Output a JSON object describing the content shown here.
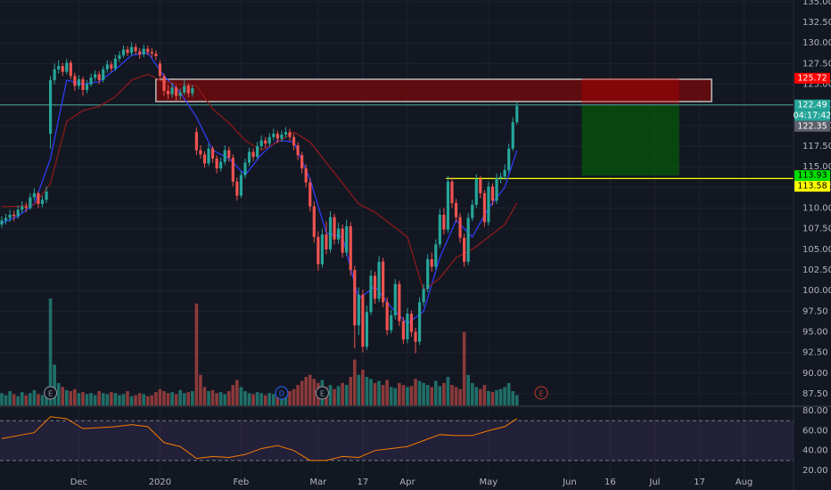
{
  "chart_data": {
    "type": "candlestick",
    "grid": true,
    "up_color": "#26a69a",
    "down_color": "#ef5350",
    "xlim": [
      -0.44,
      195.2
    ],
    "xticks": [
      {
        "value": 19,
        "label": "Dec"
      },
      {
        "value": 39,
        "label": "2020"
      },
      {
        "value": 59,
        "label": "Feb"
      },
      {
        "value": 78,
        "label": "Mar"
      },
      {
        "value": 89,
        "label": "17"
      },
      {
        "value": 100,
        "label": "Apr"
      },
      {
        "value": 120,
        "label": "May"
      },
      {
        "value": 140,
        "label": "Jun"
      },
      {
        "value": 150,
        "label": "16"
      },
      {
        "value": 161,
        "label": "Jul"
      },
      {
        "value": 172,
        "label": "17"
      },
      {
        "value": 183,
        "label": "Aug"
      }
    ],
    "ylim": [
      86.1,
      135.2
    ],
    "yticks": [
      {
        "value": 87.5,
        "label": "87.50"
      },
      {
        "value": 90,
        "label": "90.00"
      },
      {
        "value": 92.5,
        "label": "92.50"
      },
      {
        "value": 95,
        "label": "95.00"
      },
      {
        "value": 97.5,
        "label": "97.50"
      },
      {
        "value": 100,
        "label": "100.00"
      },
      {
        "value": 102.5,
        "label": "102.50"
      },
      {
        "value": 105,
        "label": "105.00"
      },
      {
        "value": 107.5,
        "label": "107.50"
      },
      {
        "value": 110,
        "label": "110.00"
      },
      {
        "value": 112.5,
        "label": "112.50"
      },
      {
        "value": 115,
        "label": "115.00"
      },
      {
        "value": 117.5,
        "label": "117.50"
      },
      {
        "value": 120,
        "label": "120.00"
      },
      {
        "value": 122.5,
        "label": "122.50"
      },
      {
        "value": 125,
        "label": "125.00"
      },
      {
        "value": 127.5,
        "label": "127.50"
      },
      {
        "value": 130,
        "label": "130.00"
      },
      {
        "value": 132.5,
        "label": "132.50"
      },
      {
        "value": 135,
        "label": "135.00"
      }
    ],
    "candles": [
      [
        108.0,
        109.0,
        107.6,
        108.5
      ],
      [
        108.5,
        109.3,
        108.0,
        108.8
      ],
      [
        108.8,
        109.8,
        108.3,
        109.2
      ],
      [
        109.2,
        109.7,
        108.4,
        109.0
      ],
      [
        109.0,
        110.3,
        108.7,
        109.8
      ],
      [
        109.8,
        110.8,
        109.4,
        110.2
      ],
      [
        110.2,
        110.7,
        109.5,
        110.0
      ],
      [
        110.0,
        111.8,
        109.8,
        111.3
      ],
      [
        111.3,
        112.4,
        110.9,
        111.8
      ],
      [
        111.8,
        112.0,
        110.0,
        110.5
      ],
      [
        110.5,
        111.5,
        110.1,
        111.0
      ],
      [
        111.0,
        112.6,
        110.6,
        112.0
      ],
      [
        119.0,
        126.0,
        117.2,
        125.5
      ],
      [
        125.5,
        127.5,
        125.0,
        126.8
      ],
      [
        126.8,
        127.9,
        126.3,
        127.2
      ],
      [
        127.2,
        127.6,
        126.0,
        126.5
      ],
      [
        126.5,
        128.1,
        126.2,
        127.6
      ],
      [
        127.6,
        127.9,
        125.6,
        126.0
      ],
      [
        126.0,
        126.4,
        124.2,
        124.8
      ],
      [
        124.8,
        126.1,
        124.4,
        125.6
      ],
      [
        125.6,
        125.9,
        123.6,
        124.3
      ],
      [
        124.3,
        125.5,
        123.9,
        125.0
      ],
      [
        125.0,
        126.3,
        124.7,
        125.8
      ],
      [
        125.8,
        126.7,
        125.4,
        126.2
      ],
      [
        126.2,
        126.6,
        125.0,
        125.5
      ],
      [
        125.5,
        127.2,
        125.2,
        126.8
      ],
      [
        126.8,
        127.9,
        126.4,
        127.4
      ],
      [
        127.4,
        127.8,
        126.5,
        126.9
      ],
      [
        126.9,
        128.6,
        126.6,
        128.1
      ],
      [
        128.1,
        129.0,
        127.7,
        128.5
      ],
      [
        128.5,
        129.7,
        128.2,
        129.2
      ],
      [
        129.2,
        129.6,
        128.4,
        128.8
      ],
      [
        128.8,
        130.1,
        128.5,
        129.5
      ],
      [
        129.5,
        129.9,
        128.6,
        129.0
      ],
      [
        129.0,
        129.4,
        128.1,
        128.6
      ],
      [
        128.6,
        129.8,
        128.3,
        129.3
      ],
      [
        129.3,
        129.7,
        128.5,
        128.9
      ],
      [
        128.9,
        129.4,
        128.2,
        128.7
      ],
      [
        128.7,
        129.1,
        127.9,
        128.4
      ],
      [
        127.5,
        127.9,
        125.4,
        126.0
      ],
      [
        126.0,
        126.3,
        123.6,
        124.2
      ],
      [
        124.2,
        124.9,
        123.2,
        123.8
      ],
      [
        123.8,
        125.2,
        123.4,
        124.6
      ],
      [
        124.6,
        124.9,
        123.0,
        123.6
      ],
      [
        123.6,
        124.5,
        123.1,
        124.0
      ],
      [
        124.0,
        125.6,
        123.7,
        124.8
      ],
      [
        124.8,
        125.1,
        123.4,
        123.9
      ],
      [
        123.9,
        124.9,
        123.5,
        124.5
      ],
      [
        119.2,
        119.8,
        116.4,
        117.0
      ],
      [
        117.0,
        117.6,
        116.0,
        116.5
      ],
      [
        116.5,
        116.9,
        114.9,
        115.4
      ],
      [
        115.4,
        117.8,
        115.1,
        117.2
      ],
      [
        117.2,
        117.5,
        115.5,
        116.0
      ],
      [
        116.0,
        116.4,
        114.2,
        114.8
      ],
      [
        114.8,
        116.1,
        114.4,
        115.6
      ],
      [
        115.6,
        117.6,
        115.2,
        117.0
      ],
      [
        117.0,
        117.4,
        115.6,
        116.1
      ],
      [
        116.1,
        116.5,
        112.6,
        113.2
      ],
      [
        113.2,
        113.7,
        110.9,
        111.5
      ],
      [
        111.5,
        114.5,
        111.2,
        114.0
      ],
      [
        114.0,
        116.0,
        113.6,
        115.5
      ],
      [
        115.5,
        117.3,
        115.1,
        116.8
      ],
      [
        116.8,
        117.2,
        115.7,
        116.2
      ],
      [
        116.2,
        118.0,
        115.9,
        117.5
      ],
      [
        117.5,
        118.8,
        117.1,
        118.2
      ],
      [
        118.2,
        118.6,
        117.3,
        117.8
      ],
      [
        117.8,
        119.1,
        117.5,
        118.6
      ],
      [
        118.6,
        119.6,
        118.2,
        119.0
      ],
      [
        119.0,
        119.4,
        117.9,
        118.4
      ],
      [
        118.4,
        119.4,
        118.0,
        118.9
      ],
      [
        118.9,
        119.8,
        118.5,
        119.2
      ],
      [
        119.2,
        119.6,
        118.1,
        118.6
      ],
      [
        118.6,
        119.0,
        117.0,
        117.6
      ],
      [
        117.6,
        118.0,
        115.8,
        116.4
      ],
      [
        116.4,
        116.8,
        114.2,
        114.8
      ],
      [
        114.8,
        115.3,
        112.5,
        113.1
      ],
      [
        113.1,
        113.6,
        109.6,
        110.2
      ],
      [
        110.2,
        110.8,
        105.8,
        106.5
      ],
      [
        106.5,
        107.2,
        102.4,
        103.2
      ],
      [
        103.2,
        107.5,
        102.8,
        106.8
      ],
      [
        106.8,
        108.4,
        104.4,
        105.0
      ],
      [
        105.0,
        109.6,
        104.6,
        108.9
      ],
      [
        108.9,
        109.3,
        105.6,
        106.2
      ],
      [
        106.2,
        108.2,
        105.7,
        107.5
      ],
      [
        107.5,
        108.0,
        104.0,
        104.6
      ],
      [
        104.6,
        108.6,
        104.2,
        107.8
      ],
      [
        107.8,
        108.3,
        101.8,
        102.5
      ],
      [
        102.5,
        103.0,
        93.0,
        95.8
      ],
      [
        95.8,
        100.4,
        94.6,
        99.5
      ],
      [
        99.5,
        100.1,
        92.5,
        93.2
      ],
      [
        93.2,
        98.2,
        92.8,
        97.4
      ],
      [
        97.4,
        102.5,
        97.0,
        101.8
      ],
      [
        101.8,
        102.3,
        98.4,
        99.0
      ],
      [
        99.0,
        104.2,
        98.6,
        103.5
      ],
      [
        103.5,
        104.0,
        98.0,
        98.6
      ],
      [
        98.6,
        99.2,
        94.6,
        95.2
      ],
      [
        95.2,
        97.7,
        94.8,
        97.0
      ],
      [
        97.0,
        101.4,
        96.5,
        100.8
      ],
      [
        100.8,
        101.2,
        95.7,
        96.3
      ],
      [
        96.3,
        96.8,
        93.5,
        94.1
      ],
      [
        94.1,
        97.9,
        93.6,
        97.2
      ],
      [
        97.2,
        97.6,
        94.4,
        95.0
      ],
      [
        95.0,
        95.5,
        92.4,
        93.8
      ],
      [
        93.8,
        99.2,
        93.4,
        98.6
      ],
      [
        98.6,
        100.8,
        98.1,
        100.2
      ],
      [
        100.2,
        104.4,
        99.8,
        103.8
      ],
      [
        103.8,
        104.6,
        102.3,
        102.9
      ],
      [
        102.9,
        106.2,
        102.5,
        105.6
      ],
      [
        105.6,
        109.9,
        105.2,
        109.2
      ],
      [
        109.2,
        110.0,
        106.8,
        107.4
      ],
      [
        107.4,
        113.9,
        107.0,
        113.2
      ],
      [
        113.2,
        113.7,
        110.0,
        110.6
      ],
      [
        110.6,
        111.1,
        108.3,
        108.9
      ],
      [
        108.9,
        109.4,
        105.8,
        106.4
      ],
      [
        106.4,
        106.9,
        102.9,
        103.5
      ],
      [
        103.5,
        109.4,
        103.1,
        108.8
      ],
      [
        108.8,
        111.0,
        108.4,
        110.4
      ],
      [
        110.4,
        114.1,
        110.0,
        113.5
      ],
      [
        113.5,
        113.9,
        111.2,
        111.8
      ],
      [
        111.8,
        112.2,
        107.7,
        108.3
      ],
      [
        108.3,
        113.2,
        107.9,
        112.6
      ],
      [
        112.6,
        113.0,
        110.3,
        110.9
      ],
      [
        110.9,
        114.2,
        110.5,
        113.6
      ],
      [
        113.6,
        114.3,
        113.0,
        113.8
      ],
      [
        113.8,
        115.3,
        113.4,
        114.6
      ],
      [
        114.6,
        117.8,
        114.2,
        117.2
      ],
      [
        117.2,
        121.0,
        116.9,
        120.4
      ],
      [
        120.4,
        122.8,
        120.1,
        122.35
      ]
    ],
    "volume": {
      "up_color": "#1f6f68",
      "down_color": "#8a3a3a",
      "values": [
        12,
        10,
        14,
        11,
        9,
        13,
        10,
        12,
        15,
        11,
        10,
        13,
        105,
        40,
        22,
        18,
        15,
        14,
        16,
        12,
        13,
        11,
        12,
        10,
        14,
        12,
        11,
        13,
        12,
        10,
        11,
        14,
        9,
        10,
        12,
        11,
        9,
        10,
        13,
        16,
        14,
        12,
        13,
        11,
        15,
        12,
        13,
        14,
        100,
        30,
        18,
        14,
        15,
        12,
        13,
        11,
        14,
        20,
        25,
        18,
        14,
        12,
        11,
        13,
        12,
        10,
        12,
        11,
        13,
        12,
        11,
        14,
        16,
        20,
        24,
        28,
        30,
        26,
        22,
        25,
        18,
        20,
        16,
        19,
        22,
        20,
        28,
        45,
        30,
        35,
        28,
        26,
        22,
        24,
        20,
        25,
        18,
        17,
        22,
        20,
        18,
        19,
        26,
        24,
        22,
        20,
        18,
        24,
        19,
        22,
        28,
        20,
        18,
        16,
        72,
        30,
        22,
        18,
        16,
        20,
        14,
        13,
        15,
        16,
        18,
        22,
        14,
        10
      ]
    },
    "lines": [
      {
        "color": "#2f3cf5",
        "x": [
          0,
          4,
          8,
          12,
          16,
          20,
          24,
          28,
          32,
          36,
          40,
          44,
          48,
          52,
          56,
          60,
          64,
          68,
          72,
          76,
          80,
          84,
          88,
          92,
          96,
          100,
          104,
          108,
          112,
          116,
          120,
          124,
          127
        ],
        "values": [
          108.2,
          109.0,
          110.5,
          116.0,
          125.5,
          125.0,
          125.3,
          126.8,
          128.5,
          128.8,
          126.0,
          124.0,
          121.0,
          117.0,
          116.0,
          114.0,
          116.5,
          118.2,
          118.0,
          113.5,
          107.0,
          106.5,
          99.0,
          100.5,
          98.0,
          96.0,
          97.5,
          104.0,
          108.5,
          106.5,
          110.0,
          112.5,
          117.0
        ]
      },
      {
        "color": "#8b1a1a",
        "x": [
          0,
          4,
          8,
          12,
          16,
          20,
          24,
          28,
          32,
          36,
          40,
          44,
          48,
          52,
          56,
          60,
          64,
          68,
          72,
          76,
          80,
          84,
          88,
          92,
          96,
          100,
          104,
          108,
          112,
          116,
          120,
          124,
          127
        ],
        "values": [
          110.2,
          110.2,
          110.4,
          113.0,
          120.5,
          121.8,
          122.3,
          123.5,
          125.5,
          126.2,
          125.3,
          125.0,
          124.8,
          122.0,
          120.3,
          118.2,
          117.0,
          118.0,
          119.2,
          118.0,
          115.5,
          113.0,
          110.5,
          109.5,
          108.0,
          106.5,
          100.0,
          101.5,
          104.0,
          105.0,
          106.5,
          108.0,
          110.6
        ]
      }
    ],
    "zones": [
      {
        "y": [
          122.9,
          125.6
        ],
        "x": [
          38,
          175
        ],
        "fill": "rgba(120,10,10,0.75)",
        "stroke": "#bdbdbd"
      },
      {
        "y": [
          122.49,
          125.72
        ],
        "x": [
          143,
          167
        ],
        "fill": "rgba(200,0,0,0.35)"
      },
      {
        "y": [
          113.93,
          122.49
        ],
        "x": [
          143,
          167
        ],
        "fill": "rgba(0,110,0,0.55)"
      }
    ],
    "hlines": [
      {
        "y": 122.49,
        "x": [
          -0.44,
          195.2
        ],
        "color": "#3f8f86"
      },
      {
        "y": 113.58,
        "x": [
          109.5,
          195.2
        ],
        "color": "#ffff00"
      }
    ],
    "price_tags": [
      {
        "value": 125.72,
        "color": "#ff0000",
        "text_color": "#ffffff"
      },
      {
        "value": 122.49,
        "color": "#26a69a",
        "text_color": "#ffffff"
      },
      {
        "value": 122.35,
        "color": "#5d606b",
        "text_color": "#ffffff"
      },
      {
        "value": 113.93,
        "color": "#00e000",
        "text_color": "#000000"
      },
      {
        "value": 113.58,
        "color": "#ffff00",
        "text_color": "#000000"
      }
    ],
    "countdown": "04:17:42",
    "events": [
      {
        "x": 12,
        "label": "E",
        "color": "#9598a1"
      },
      {
        "x": 69,
        "label": "D",
        "color": "#2962ff"
      },
      {
        "x": 79,
        "label": "E",
        "color": "#9598a1"
      },
      {
        "x": 133,
        "label": "E",
        "color": "#c0392b"
      }
    ],
    "rsi": {
      "ylim": [
        0.3,
        84.5
      ],
      "yticks": [
        {
          "value": 20,
          "label": "20.00"
        },
        {
          "value": 40,
          "label": "40.00"
        },
        {
          "value": 60,
          "label": "60.00"
        },
        {
          "value": 80,
          "label": "80.00"
        }
      ],
      "levels": [
        30,
        70
      ],
      "color": "#f57c00",
      "band_fill": "rgba(126,87,194,0.15)",
      "x": [
        0,
        4,
        8,
        12,
        16,
        20,
        24,
        28,
        32,
        36,
        40,
        44,
        48,
        52,
        56,
        60,
        64,
        68,
        72,
        76,
        80,
        84,
        88,
        92,
        96,
        100,
        104,
        108,
        112,
        116,
        120,
        124,
        127
      ],
      "values": [
        52,
        55,
        58,
        74,
        72,
        62,
        63,
        64,
        66,
        64,
        48,
        44,
        32,
        34,
        33,
        36,
        42,
        45,
        40,
        30,
        30,
        34,
        33,
        40,
        42,
        44,
        50,
        56,
        55,
        55,
        60,
        64,
        72
      ]
    }
  }
}
